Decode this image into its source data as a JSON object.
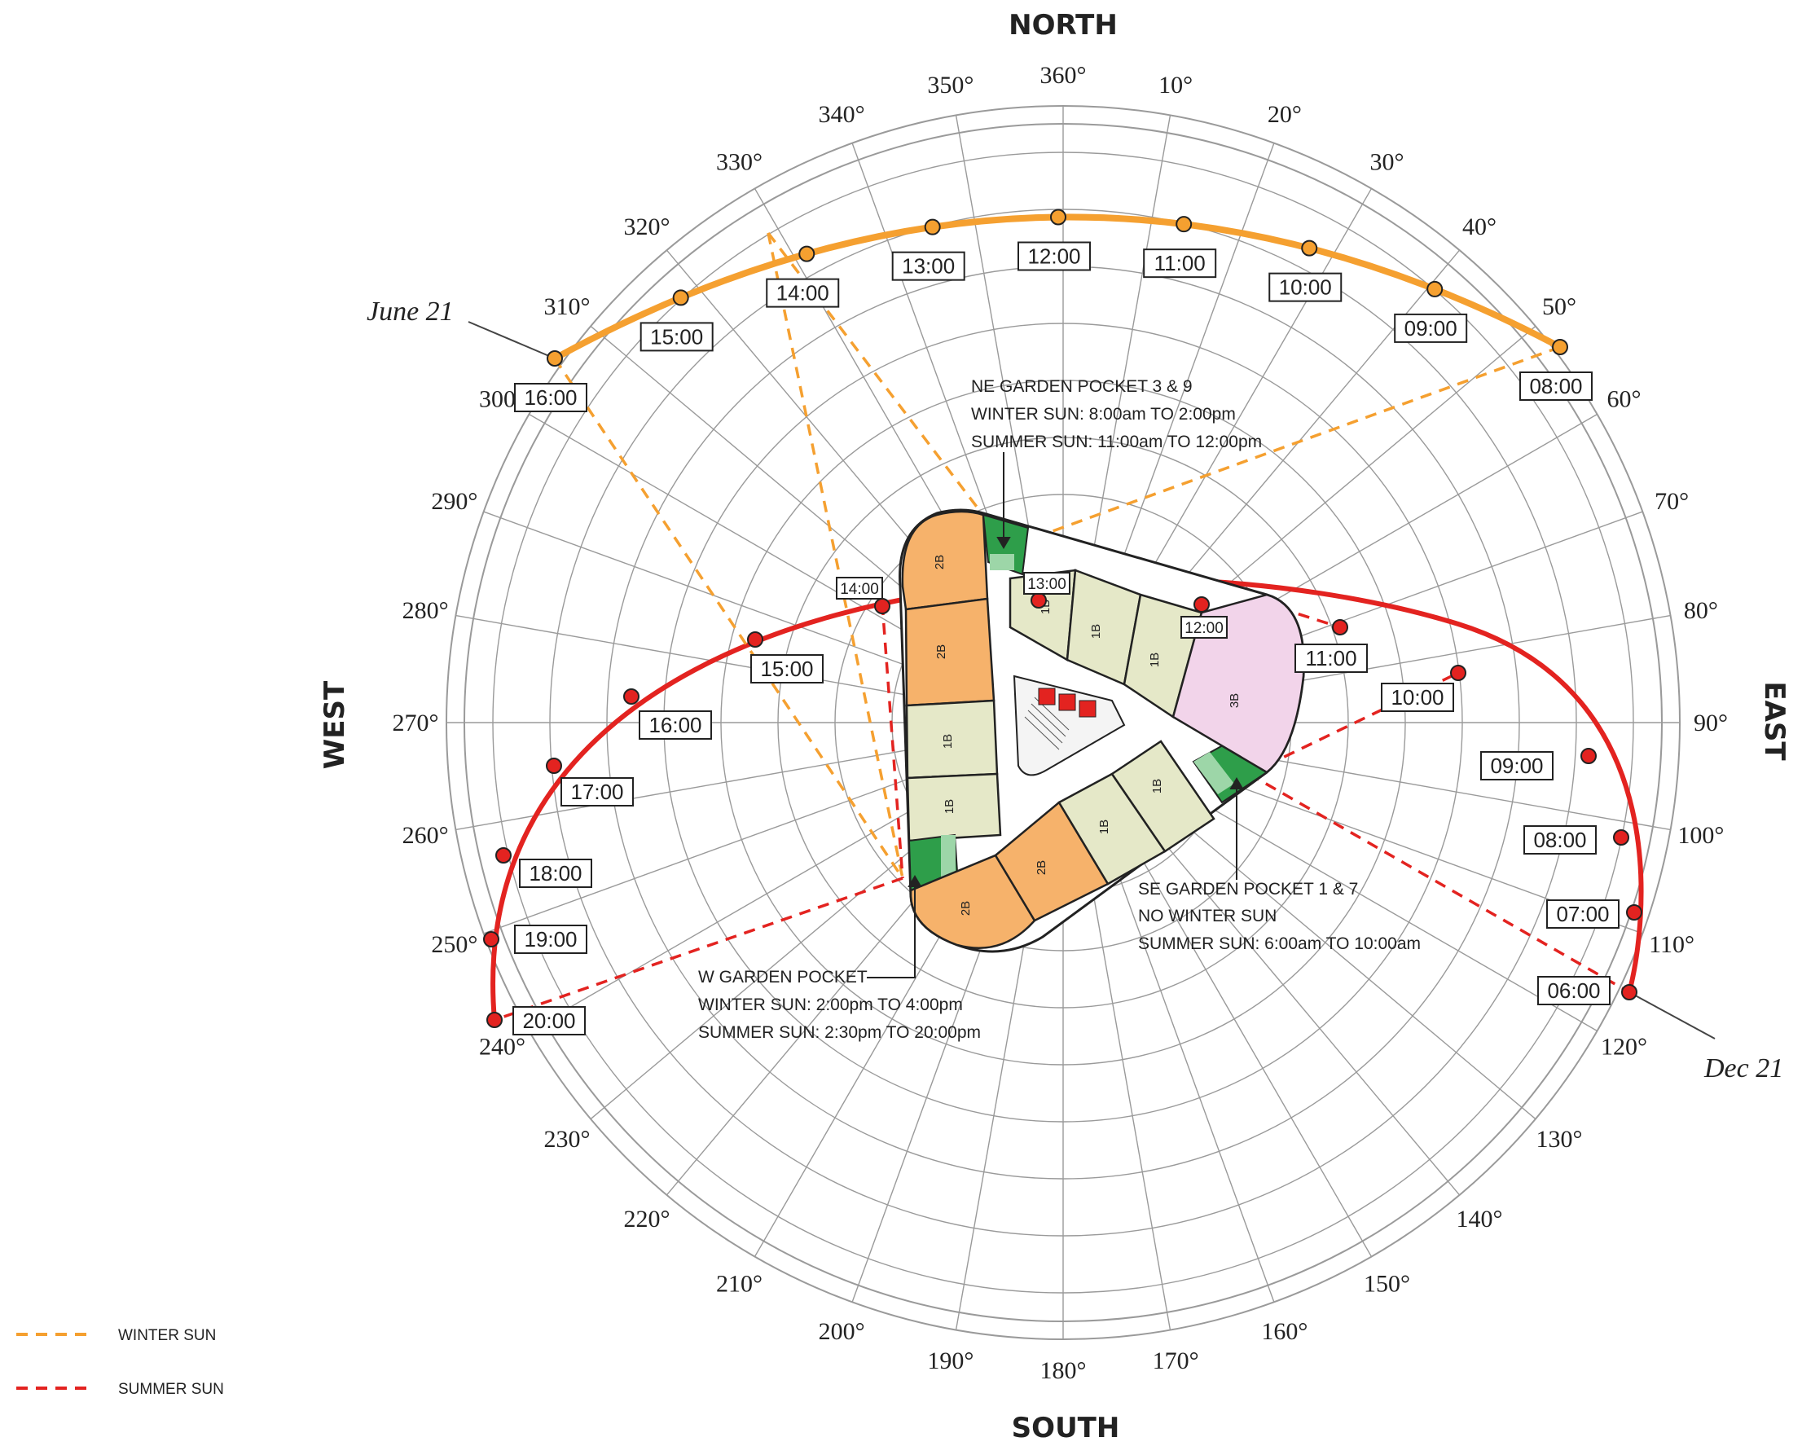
{
  "compass": {
    "north": "NORTH",
    "south": "SOUTH",
    "east": "EAST",
    "west": "WEST",
    "degrees": [
      "360°",
      "10°",
      "20°",
      "30°",
      "40°",
      "50°",
      "60°",
      "70°",
      "80°",
      "90°",
      "100°",
      "110°",
      "120°",
      "130°",
      "140°",
      "150°",
      "160°",
      "170°",
      "180°",
      "190°",
      "200°",
      "210°",
      "220°",
      "230°",
      "240°",
      "250°",
      "260°",
      "270°",
      "280°",
      "290°",
      "300°",
      "310°",
      "320°",
      "330°",
      "340°",
      "350°"
    ]
  },
  "sun_paths": {
    "winter": {
      "date_label": "June 21",
      "color": "#f5a030",
      "times": [
        "08:00",
        "09:00",
        "10:00",
        "11:00",
        "12:00",
        "13:00",
        "14:00",
        "15:00",
        "16:00"
      ]
    },
    "summer": {
      "date_label": "Dec 21",
      "color": "#e32320",
      "times": [
        "06:00",
        "07:00",
        "08:00",
        "09:00",
        "10:00",
        "11:00",
        "12:00",
        "13:00",
        "14:00",
        "15:00",
        "16:00",
        "17:00",
        "18:00",
        "19:00",
        "20:00"
      ]
    }
  },
  "annotations": {
    "ne": {
      "title": "NE GARDEN POCKET 3 & 9",
      "winter": "WINTER SUN: 8:00am TO 2:00pm",
      "summer": "SUMMER SUN: 11:00am TO 12:00pm"
    },
    "se": {
      "title": "SE GARDEN POCKET 1 & 7",
      "winter": "NO WINTER SUN",
      "summer": "SUMMER SUN: 6:00am TO 10:00am"
    },
    "w": {
      "title": "W GARDEN POCKET",
      "winter": "WINTER SUN: 2:00pm TO 4:00pm",
      "summer": "SUMMER SUN: 2:30pm TO 20:00pm"
    }
  },
  "floorplan": {
    "units": [
      "2B",
      "2B",
      "1B",
      "1B",
      "2B",
      "2B",
      "1B",
      "1B",
      "1B",
      "1B",
      "1B",
      "3B"
    ]
  },
  "legend": {
    "winter": "WINTER SUN",
    "summer": "SUMMER SUN"
  },
  "colors": {
    "winter": "#f5a030",
    "summer": "#e32320",
    "garden": "#2e9e4a",
    "unit_2b": "#f6b26b",
    "unit_1b": "#e5e8c8",
    "unit_3b": "#f2d4ea"
  }
}
